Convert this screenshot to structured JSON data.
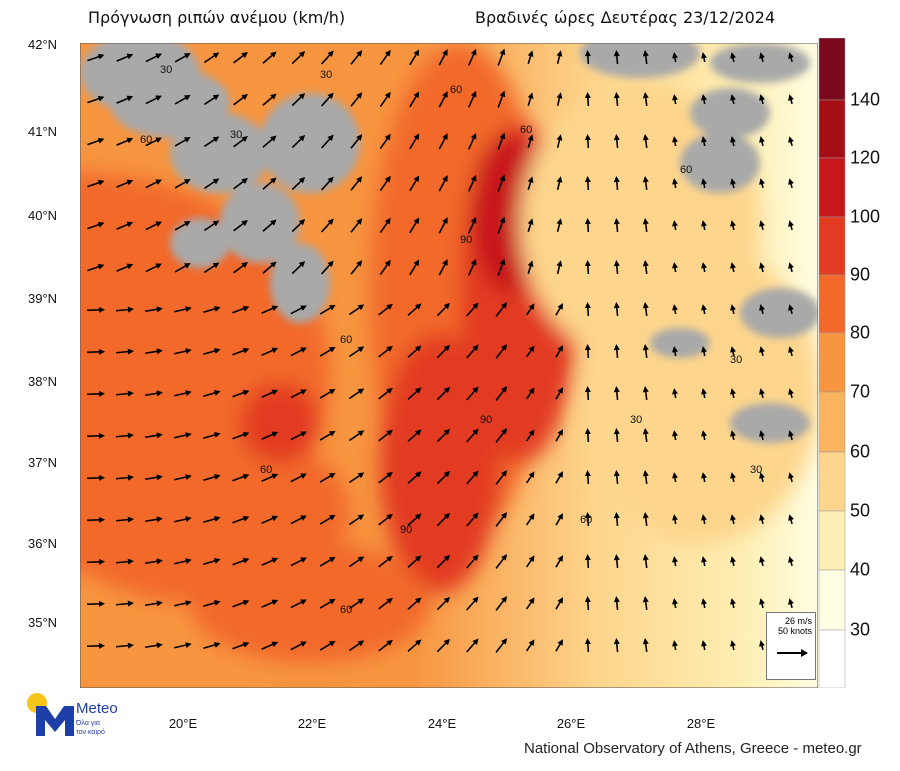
{
  "header": {
    "title_left": "Πρόγνωση ριπών ανέμου (km/h)",
    "title_right": "Βραδινές ώρες Δευτέρας 23/12/2024"
  },
  "map": {
    "lat_labels": [
      "42°N",
      "41°N",
      "40°N",
      "39°N",
      "38°N",
      "37°N",
      "36°N",
      "35°N"
    ],
    "lon_labels": [
      "20°E",
      "22°E",
      "24°E",
      "26°E",
      "28°E"
    ],
    "contour_labels": [
      "30",
      "60",
      "90"
    ],
    "land_color": "#a9a9a9"
  },
  "colorbar": {
    "labels": [
      "140",
      "120",
      "100",
      "90",
      "80",
      "70",
      "60",
      "50",
      "40",
      "30"
    ],
    "colors": [
      "#7b0a1e",
      "#a50f15",
      "#c8161d",
      "#e23b22",
      "#f2692a",
      "#f79540",
      "#fbb45e",
      "#fdd58c",
      "#feefb4",
      "#fffde2",
      "#ffffff"
    ]
  },
  "reference_vector": {
    "line1": "26 m/s",
    "line2": "50 knots",
    "icon": "arrow-right-icon"
  },
  "logo": {
    "name": "Meteo",
    "tagline1": "Όλα για",
    "tagline2": "τον καιρό"
  },
  "credit": "National Observatory of Athens, Greece - meteo.gr"
}
